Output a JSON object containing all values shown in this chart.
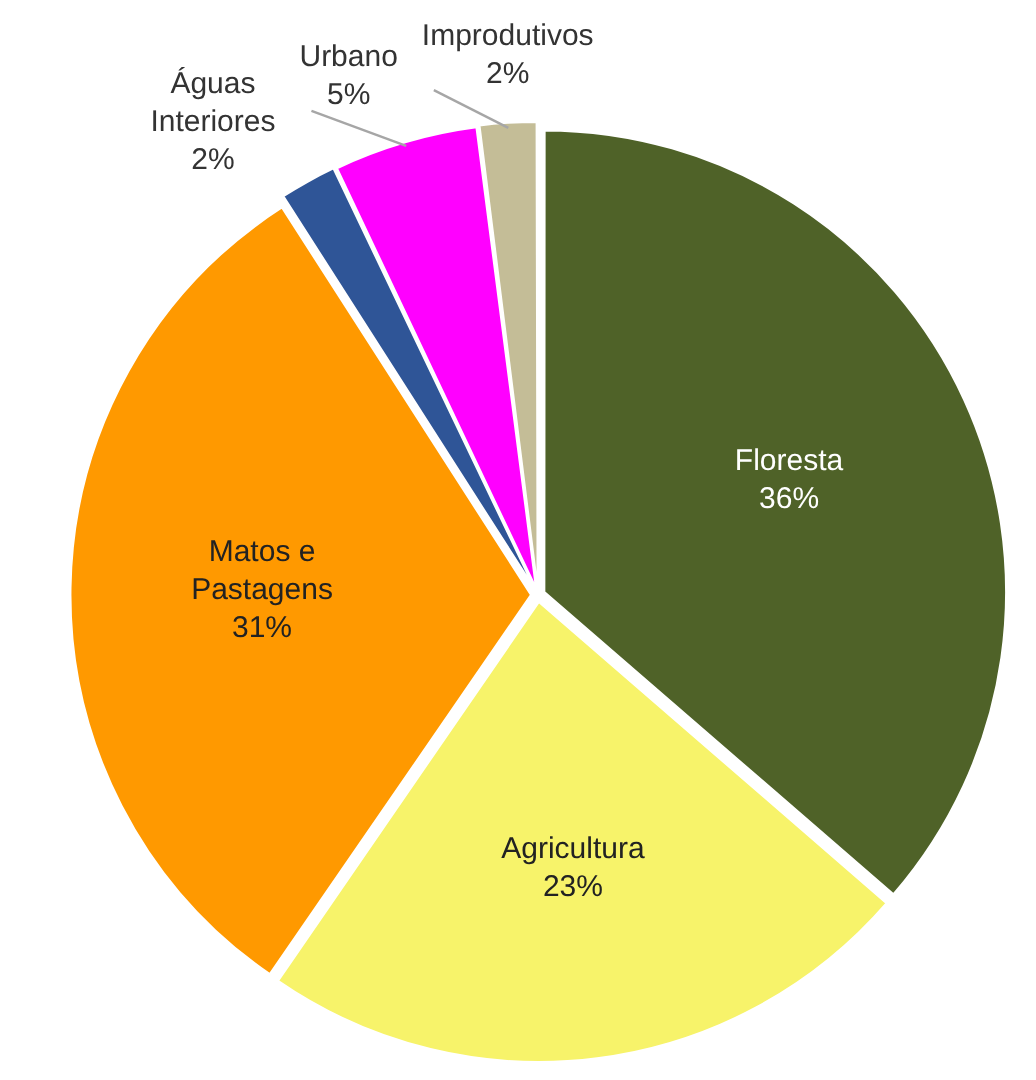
{
  "chart_data": {
    "type": "pie",
    "categories": [
      "Floresta",
      "Agricultura",
      "Matos e Pastagens",
      "Águas Interiores",
      "Urbano",
      "Improdutivos"
    ],
    "values": [
      36,
      23,
      31,
      2,
      5,
      2
    ],
    "value_labels": [
      "36%",
      "23%",
      "31%",
      "2%",
      "5%",
      "2%"
    ],
    "colors": [
      "#4f6228",
      "#f7f36a",
      "#ff9900",
      "#2f5597",
      "#ff00ff",
      "#c4bd97"
    ],
    "legend": false
  }
}
